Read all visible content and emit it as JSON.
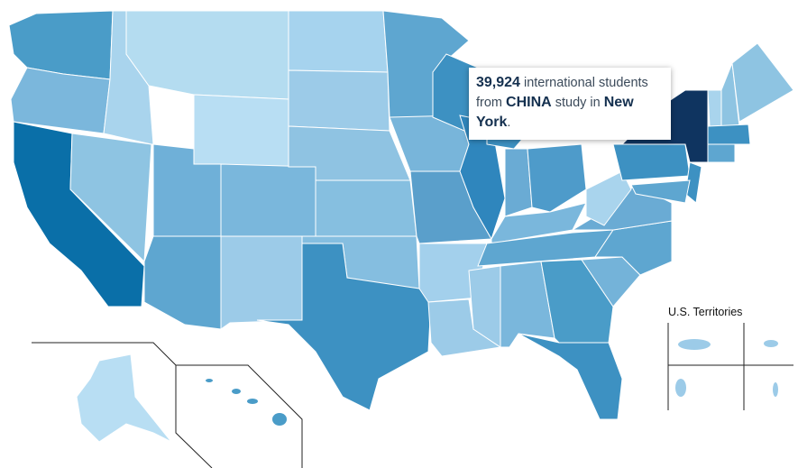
{
  "tooltip": {
    "count": "39,924",
    "text1": " international students from ",
    "country": "CHINA",
    "text2": " study in ",
    "state": "New York",
    "end": "."
  },
  "territories_label": "U.S. Territories"
}
